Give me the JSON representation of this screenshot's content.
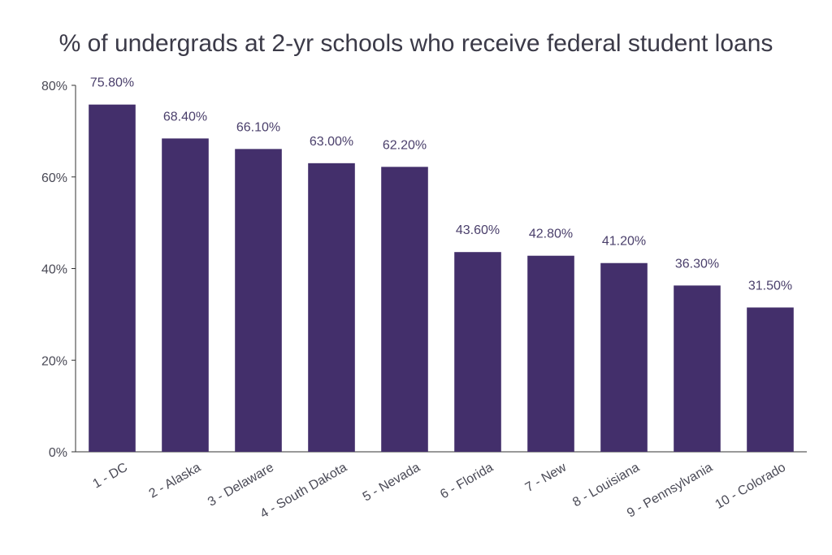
{
  "chart_data": {
    "type": "bar",
    "title": "% of undergrads at 2-yr schools who receive federal student loans",
    "xlabel": "",
    "ylabel": "",
    "categories": [
      "1 - DC",
      "2 - Alaska",
      "3 - Delaware",
      "4 - South Dakota",
      "5 - Nevada",
      "6 - Florida",
      "7 - New",
      "8 - Louisiana",
      "9 - Pennsylvania",
      "10 - Colorado"
    ],
    "values": [
      75.8,
      68.4,
      66.1,
      63.0,
      62.2,
      43.6,
      42.8,
      41.2,
      36.3,
      31.5
    ],
    "data_labels": [
      "75.80%",
      "68.40%",
      "66.10%",
      "63.00%",
      "62.20%",
      "43.60%",
      "42.80%",
      "41.20%",
      "36.30%",
      "31.50%"
    ],
    "y_ticks": [
      0,
      20,
      40,
      60,
      80
    ],
    "y_tick_labels": [
      "0%",
      "20%",
      "40%",
      "60%",
      "80%"
    ],
    "ylim": [
      0,
      80
    ],
    "grid": false,
    "legend": "none",
    "bar_color": "#432f6b",
    "axis_color": "#333333"
  }
}
